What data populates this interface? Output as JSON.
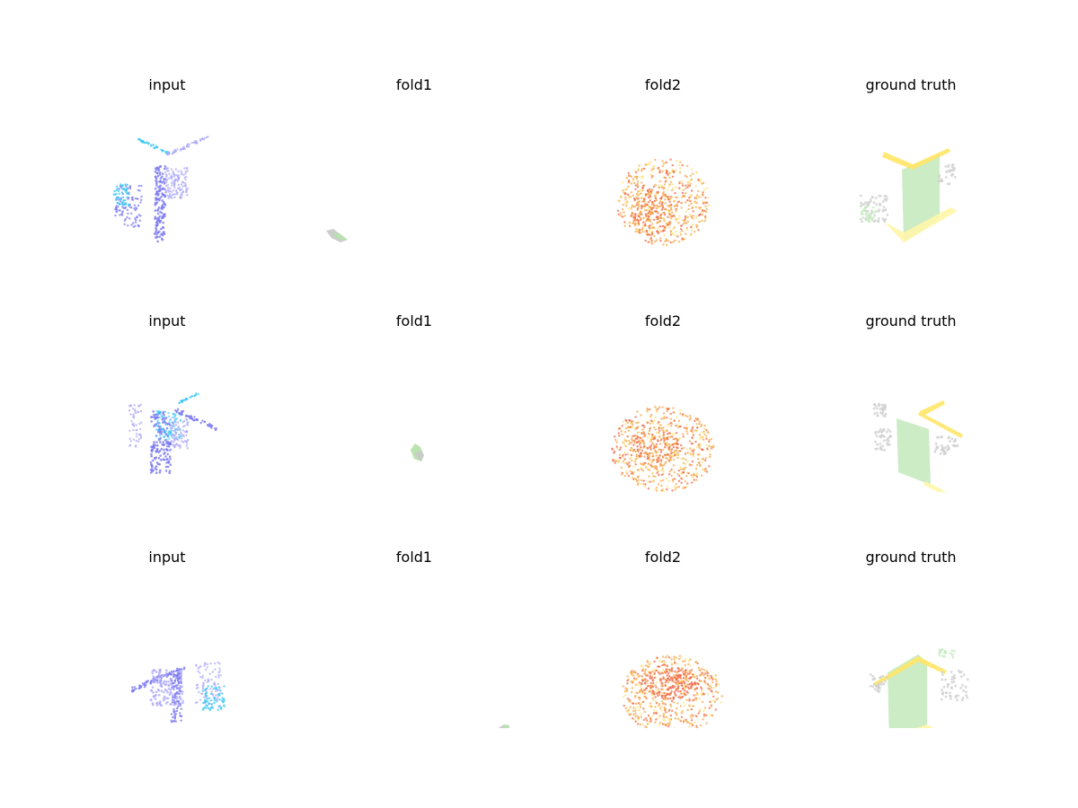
{
  "figure": {
    "rows": [
      {
        "panels": [
          {
            "title": "input",
            "render": "input",
            "variant": 0
          },
          {
            "title": "fold1",
            "render": "fold1",
            "variant": 0
          },
          {
            "title": "fold2",
            "render": "fold2",
            "variant": 0
          },
          {
            "title": "ground truth",
            "render": "gt",
            "variant": 0
          }
        ]
      },
      {
        "panels": [
          {
            "title": "input",
            "render": "input",
            "variant": 1
          },
          {
            "title": "fold1",
            "render": "fold1",
            "variant": 1
          },
          {
            "title": "fold2",
            "render": "fold2",
            "variant": 1
          },
          {
            "title": "ground truth",
            "render": "gt",
            "variant": 1
          }
        ]
      },
      {
        "panels": [
          {
            "title": "input",
            "render": "input",
            "variant": 2
          },
          {
            "title": "fold1",
            "render": "fold1",
            "variant": 2
          },
          {
            "title": "fold2",
            "render": "fold2",
            "variant": 2
          },
          {
            "title": "ground truth",
            "render": "gt",
            "variant": 2
          }
        ]
      }
    ],
    "palette": {
      "input_primary": "#7b78f0",
      "input_light": "#a9a6f7",
      "input_cyan": "#3cc8f5",
      "fold1_green": "#b5e3ad",
      "fold1_gray": "#c9c9c9",
      "fold2_red": "#ef6a4a",
      "fold2_orange": "#f5a84a",
      "fold2_yellow": "#ffe27a",
      "gt_green": "#c8ebc2",
      "gt_yellow": "#ffe566",
      "gt_gray": "#cfcfcf",
      "gt_paleyellow": "#fff6a8"
    }
  }
}
